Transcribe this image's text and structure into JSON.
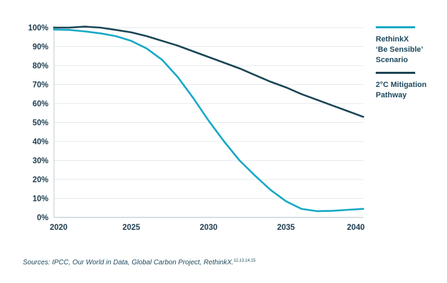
{
  "chart_data": {
    "type": "line",
    "title": "",
    "xlabel": "",
    "ylabel": "",
    "x": [
      2020,
      2021,
      2022,
      2023,
      2024,
      2025,
      2026,
      2027,
      2028,
      2029,
      2030,
      2031,
      2032,
      2033,
      2034,
      2035,
      2036,
      2037,
      2038,
      2039,
      2040
    ],
    "xlim": [
      2020,
      2040
    ],
    "ylim": [
      0,
      100
    ],
    "x_ticks": [
      2020,
      2025,
      2030,
      2035,
      2040
    ],
    "x_tick_labels": [
      "2020",
      "2025",
      "2030",
      "2035",
      "2040"
    ],
    "y_ticks": [
      0,
      10,
      20,
      30,
      40,
      50,
      60,
      70,
      80,
      90,
      100
    ],
    "y_tick_labels": [
      "0%",
      "10%",
      "20%",
      "30%",
      "40%",
      "50%",
      "60%",
      "70%",
      "80%",
      "90%",
      "100%"
    ],
    "grid": true,
    "legend_position": "right",
    "series": [
      {
        "name": "RethinkX ‘Be Sensible’ Scenario",
        "legend_lines": [
          "RethinkX",
          "‘Be Sensible’",
          "Scenario"
        ],
        "color": "#14a8c6",
        "values": [
          99,
          98.8,
          98,
          97,
          95.5,
          93,
          89,
          83,
          74,
          63,
          51,
          40,
          30,
          22,
          14.5,
          8.5,
          4.5,
          3.3,
          3.5,
          4,
          4.5
        ]
      },
      {
        "name": "2°C Mitigation Pathway",
        "legend_lines": [
          "2°C Mitigation",
          "Pathway"
        ],
        "color": "#1a4556",
        "values": [
          100,
          100,
          100.5,
          100,
          98.8,
          97.5,
          95.5,
          93,
          90.5,
          87.5,
          84.5,
          81.5,
          78.5,
          75,
          71.5,
          68.5,
          65,
          62,
          59,
          56,
          53
        ]
      }
    ]
  },
  "colors": {
    "gridline": "#e3e9ec",
    "axis": "#c9d4d9",
    "tick_text": "#1d3c4f"
  },
  "legend": {
    "items": [
      {
        "line1": "RethinkX",
        "line2": "‘Be Sensible’",
        "line3": "Scenario"
      },
      {
        "line1": "2°C Mitigation",
        "line2": "Pathway"
      }
    ]
  },
  "footer": {
    "sources": "Sources: IPCC, Our World in Data, Global Carbon Project, RethinkX.",
    "refs": "12,13,14,15"
  }
}
